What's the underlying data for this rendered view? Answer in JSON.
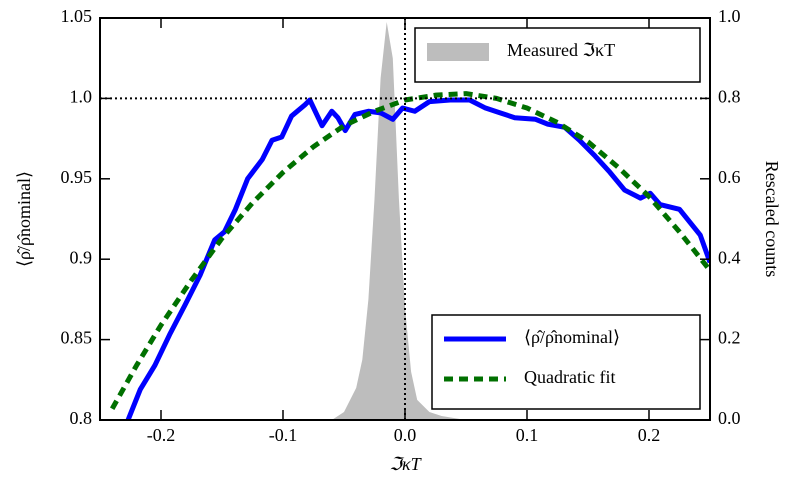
{
  "chart_data": {
    "type": "line",
    "xlabel": "ℑκT",
    "ylabel": "⟨ρ̂/ρ̂nominal⟩",
    "y2label": "Rescaled counts",
    "xlim": [
      -0.25,
      0.25
    ],
    "xticks": [
      -0.2,
      -0.1,
      {
        "value": 0,
        "label": "0.0"
      },
      0.1,
      0.2
    ],
    "ylim": [
      0.8,
      1.05
    ],
    "yticks": [
      0.8,
      0.85,
      0.9,
      0.95,
      {
        "value": 1,
        "label": "1.0"
      },
      1.05
    ],
    "y2lim": [
      0,
      1
    ],
    "y2ticks": [
      {
        "value": 0,
        "label": "0.0"
      },
      0.2,
      0.4,
      0.6,
      0.8,
      {
        "value": 1,
        "label": "1.0"
      }
    ],
    "hlines": [
      1
    ],
    "vlines": [
      0
    ],
    "series": [
      {
        "name": "Measured ℑκT",
        "kind": "area",
        "axis": "y2",
        "color": "#bdbdbd",
        "legend": "upper right",
        "x": [
          -0.06,
          -0.05,
          -0.04,
          -0.035,
          -0.03,
          -0.025,
          -0.02,
          -0.015,
          -0.01,
          -0.005,
          0,
          0.005,
          0.01,
          0.02,
          0.03,
          0.05
        ],
        "values": [
          0,
          0.02,
          0.08,
          0.15,
          0.3,
          0.55,
          0.85,
          0.99,
          0.9,
          0.55,
          0.28,
          0.12,
          0.05,
          0.02,
          0.01,
          0
        ]
      },
      {
        "name": "⟨ρ̂/ρ̂nominal⟩",
        "kind": "line",
        "color": "#0000ff",
        "legend": "lower right",
        "x": [
          -0.227,
          -0.217,
          -0.205,
          -0.193,
          -0.18,
          -0.168,
          -0.156,
          -0.148,
          -0.139,
          -0.129,
          -0.117,
          -0.109,
          -0.101,
          -0.093,
          -0.082,
          -0.078,
          -0.068,
          -0.06,
          -0.055,
          -0.049,
          -0.041,
          -0.03,
          -0.02,
          -0.01,
          -0.002,
          0.008,
          0.02,
          0.037,
          0.053,
          0.066,
          0.078,
          0.09,
          0.107,
          0.117,
          0.131,
          0.143,
          0.156,
          0.168,
          0.18,
          0.193,
          0.201,
          0.209,
          0.225,
          0.242,
          0.25
        ],
        "values": [
          0.8,
          0.819,
          0.834,
          0.853,
          0.872,
          0.89,
          0.912,
          0.917,
          0.931,
          0.95,
          0.962,
          0.974,
          0.976,
          0.989,
          0.996,
          0.999,
          0.983,
          0.992,
          0.988,
          0.98,
          0.99,
          0.992,
          0.991,
          0.987,
          0.994,
          0.992,
          0.998,
          0.999,
          0.999,
          0.994,
          0.991,
          0.988,
          0.987,
          0.984,
          0.982,
          0.974,
          0.964,
          0.954,
          0.943,
          0.938,
          0.941,
          0.934,
          0.931,
          0.915,
          0.898
        ]
      },
      {
        "name": "Quadratic fit",
        "kind": "dashed",
        "color": "#007000",
        "legend": "lower right",
        "x": [
          -0.24,
          -0.22,
          -0.2,
          -0.175,
          -0.15,
          -0.125,
          -0.1,
          -0.075,
          -0.05,
          -0.025,
          0,
          0.025,
          0.05,
          0.075,
          0.1,
          0.125,
          0.15,
          0.175,
          0.2,
          0.225,
          0.25
        ],
        "values": [
          0.807,
          0.834,
          0.859,
          0.887,
          0.913,
          0.935,
          0.954,
          0.97,
          0.983,
          0.992,
          0.999,
          1.002,
          1.003,
          1,
          0.994,
          0.985,
          0.973,
          0.957,
          0.939,
          0.917,
          0.893
        ]
      }
    ]
  }
}
